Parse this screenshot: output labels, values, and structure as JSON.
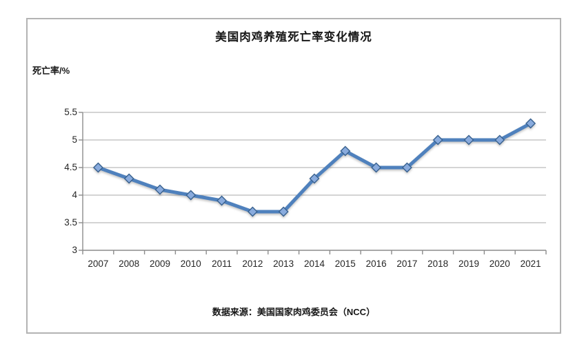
{
  "chart": {
    "title": "美国肉鸡养殖死亡率变化情况",
    "y_axis_unit_label": "死亡率/%",
    "source_note": "数据来源：美国国家肉鸡委员会（NCC）"
  },
  "chart_data": {
    "type": "line",
    "title": "美国肉鸡养殖死亡率变化情况",
    "xlabel": "",
    "ylabel": "死亡率/%",
    "categories": [
      "2007",
      "2008",
      "2009",
      "2010",
      "2011",
      "2012",
      "2013",
      "2014",
      "2015",
      "2016",
      "2017",
      "2018",
      "2019",
      "2020",
      "2021"
    ],
    "values": [
      4.5,
      4.3,
      4.1,
      4.0,
      3.9,
      3.7,
      3.7,
      4.3,
      4.8,
      4.5,
      4.5,
      5.0,
      5.0,
      5.0,
      5.3
    ],
    "ylim": [
      3,
      5.5
    ],
    "ytick_step": 0.5,
    "ytick_labels": [
      "3",
      "3.5",
      "4",
      "4.5",
      "5",
      "5.5"
    ],
    "grid": true,
    "legend_position": "none",
    "marker": "diamond",
    "colors": {
      "line": "#4f81bd",
      "marker_fill": "#89abdd",
      "marker_stroke": "#38618f",
      "gridline": "#aaaaaa",
      "axis": "#8c8c8c",
      "box_border": "#b3b3b3"
    },
    "source_note": "数据来源：美国国家肉鸡委员会（NCC）"
  }
}
